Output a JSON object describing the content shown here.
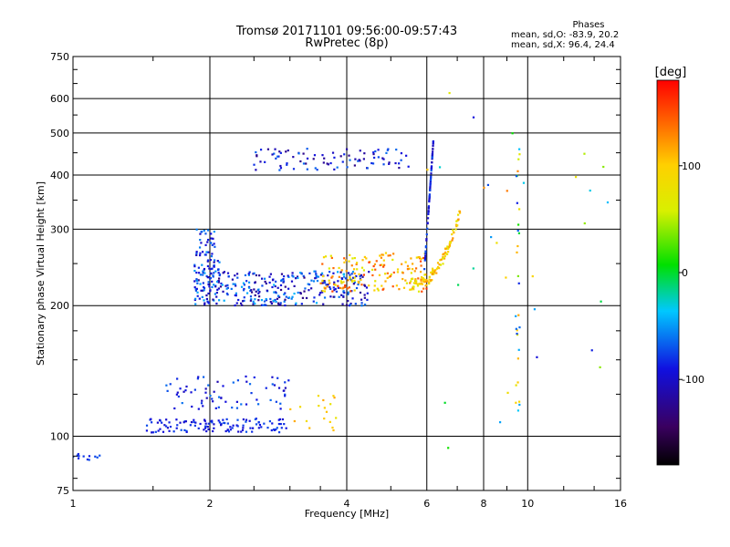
{
  "header": {
    "title": "Tromsø 20171101 09:56:00-09:57:43",
    "subtitle": "RwPretec (8p)"
  },
  "stats": {
    "heading": "Phases",
    "o_line": "mean, sd,O: -83.9, 20.2",
    "x_line": "mean, sd,X:  96.4, 24.4"
  },
  "chart_data": {
    "type": "scatter",
    "xlabel": "Frequency [MHz]",
    "ylabel": "Stationary phase Virtual Height [km]",
    "xscale": "log",
    "yscale": "log",
    "xlim": [
      1,
      16
    ],
    "ylim": [
      75,
      750
    ],
    "x_ticks": [
      "1",
      "2",
      "4",
      "6",
      "8",
      "10",
      "16"
    ],
    "x_tick_values": [
      1,
      2,
      4,
      6,
      8,
      10,
      16
    ],
    "y_ticks": [
      "75",
      "100",
      "200",
      "300",
      "400",
      "500",
      "600",
      "750"
    ],
    "y_tick_values": [
      75,
      100,
      200,
      300,
      400,
      500,
      600,
      750
    ],
    "colorbar": {
      "label": "[deg]",
      "range": [
        -180,
        180
      ],
      "ticks": [
        "100",
        "0",
        "-100"
      ],
      "tick_values": [
        100,
        0,
        -100
      ]
    },
    "grid": true,
    "clusters": [
      {
        "desc": "E layer low",
        "f": [
          1.45,
          3.0
        ],
        "h": [
          102,
          110
        ],
        "phase": [
          -100,
          -70
        ],
        "n": 120
      },
      {
        "desc": "E layer upper",
        "f": [
          1.6,
          3.0
        ],
        "h": [
          115,
          138
        ],
        "phase": [
          -110,
          -60
        ],
        "n": 70
      },
      {
        "desc": "yellow near 3.5",
        "f": [
          3.0,
          3.8
        ],
        "h": [
          103,
          125
        ],
        "phase": [
          70,
          120
        ],
        "n": 18
      },
      {
        "desc": "low origin",
        "f": [
          1.0,
          1.15
        ],
        "h": [
          88,
          92
        ],
        "phase": [
          -90,
          -70
        ],
        "n": 12
      },
      {
        "desc": "F layer main",
        "f": [
          1.85,
          4.5
        ],
        "h": [
          200,
          240
        ],
        "phase": [
          -130,
          -40
        ],
        "n": 320
      },
      {
        "desc": "F layer near 2",
        "f": [
          1.85,
          2.1
        ],
        "h": [
          200,
          300
        ],
        "phase": [
          -110,
          -50
        ],
        "n": 90
      },
      {
        "desc": "F layer upper warm",
        "f": [
          3.5,
          6.0
        ],
        "h": [
          215,
          265
        ],
        "phase": [
          60,
          160
        ],
        "n": 160
      },
      {
        "desc": "X trace",
        "f": [
          5.5,
          7.1
        ],
        "h": [
          225,
          330
        ],
        "phase": [
          60,
          130
        ],
        "n": 110
      },
      {
        "desc": "O trace rising",
        "f": [
          5.8,
          6.2
        ],
        "h": [
          240,
          480
        ],
        "phase": [
          -110,
          -70
        ],
        "n": 70
      },
      {
        "desc": "high echo",
        "f": [
          2.5,
          5.5
        ],
        "h": [
          410,
          460
        ],
        "phase": [
          -130,
          -60
        ],
        "n": 90
      },
      {
        "desc": "spread near 9.5",
        "f": [
          9.4,
          9.6
        ],
        "h": [
          110,
          540
        ],
        "phase": [
          -100,
          140
        ],
        "n": 30
      },
      {
        "desc": "scattered",
        "f": [
          6.0,
          15.0
        ],
        "h": [
          90,
          620
        ],
        "phase": [
          -100,
          140
        ],
        "n": 30
      }
    ]
  }
}
